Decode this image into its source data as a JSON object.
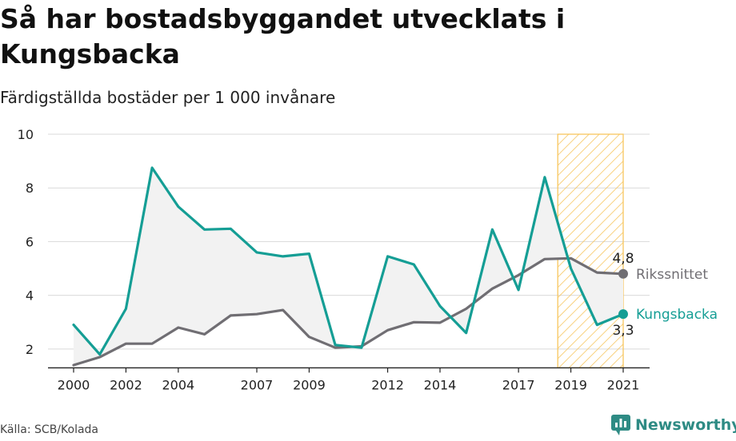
{
  "title": "Så har bostadsbyggandet utvecklats i Kungsbacka",
  "subtitle": "Färdigställda bostäder per 1 000 invånare",
  "source": "Källa: SCB/Kolada",
  "brand": "Newsworthy",
  "colors": {
    "kungsbacka": "#159e95",
    "riket": "#706e73",
    "highlight": "#f7c65f",
    "fill": "#f2f2f2",
    "grid": "#d9d9d9",
    "brand": "#2e8b84"
  },
  "chart_data": {
    "type": "line",
    "x": [
      2000,
      2001,
      2002,
      2003,
      2004,
      2005,
      2006,
      2007,
      2008,
      2009,
      2010,
      2011,
      2012,
      2013,
      2014,
      2015,
      2016,
      2017,
      2018,
      2019,
      2020,
      2021
    ],
    "xticks": [
      2000,
      2002,
      2004,
      2007,
      2009,
      2012,
      2014,
      2017,
      2019,
      2021
    ],
    "ylim": [
      1.3,
      10
    ],
    "yticks": [
      2,
      4,
      6,
      8,
      10
    ],
    "highlight_range": [
      2018.5,
      2021
    ],
    "series": [
      {
        "name": "Kungsbacka",
        "end_label": "3,3",
        "values": [
          2.9,
          1.8,
          3.5,
          8.75,
          7.3,
          6.45,
          6.48,
          5.6,
          5.45,
          5.55,
          2.15,
          2.05,
          5.45,
          5.15,
          3.6,
          2.6,
          6.45,
          4.2,
          8.4,
          5.0,
          2.9,
          3.3
        ]
      },
      {
        "name": "Rikssnittet",
        "end_label": "4,8",
        "values": [
          1.4,
          1.7,
          2.2,
          2.2,
          2.8,
          2.55,
          3.25,
          3.3,
          3.45,
          2.45,
          2.05,
          2.1,
          2.7,
          3.0,
          2.98,
          3.5,
          4.25,
          4.75,
          5.35,
          5.38,
          4.85,
          4.8
        ]
      }
    ]
  }
}
